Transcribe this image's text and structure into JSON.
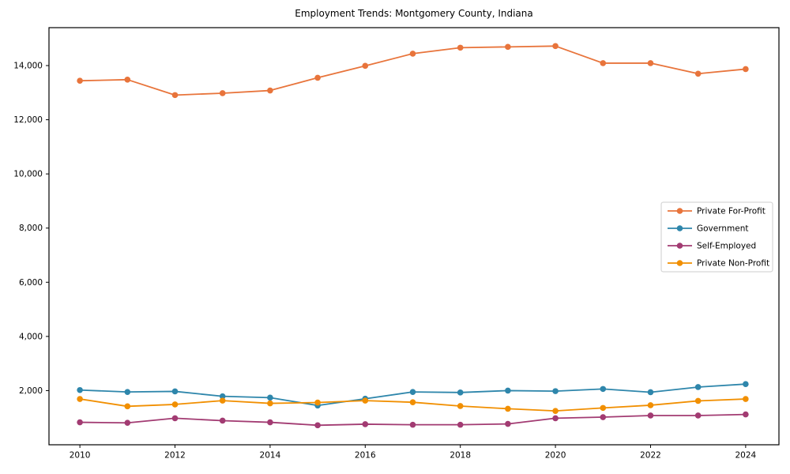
{
  "chart_data": {
    "type": "line",
    "title": "Employment Trends: Montgomery County, Indiana",
    "xlabel": "",
    "ylabel": "",
    "x": [
      2010,
      2011,
      2012,
      2013,
      2014,
      2015,
      2016,
      2017,
      2018,
      2019,
      2020,
      2021,
      2022,
      2023,
      2024
    ],
    "series": [
      {
        "name": "Private For-Profit",
        "color": "#E8743B",
        "marker": "circle",
        "values": [
          13440,
          13480,
          12910,
          12980,
          13080,
          13550,
          13990,
          14440,
          14660,
          14690,
          14720,
          14090,
          14090,
          13700,
          13870
        ]
      },
      {
        "name": "Government",
        "color": "#2E86AB",
        "marker": "circle",
        "values": [
          2020,
          1950,
          1970,
          1790,
          1740,
          1450,
          1700,
          1950,
          1930,
          2000,
          1980,
          2060,
          1940,
          2130,
          2240
        ]
      },
      {
        "name": "Self-Employed",
        "color": "#A23B72",
        "marker": "circle",
        "values": [
          830,
          810,
          980,
          890,
          830,
          720,
          760,
          740,
          740,
          770,
          980,
          1020,
          1080,
          1080,
          1120
        ]
      },
      {
        "name": "Private Non-Profit",
        "color": "#F18F01",
        "marker": "circle",
        "values": [
          1690,
          1420,
          1490,
          1630,
          1530,
          1560,
          1630,
          1570,
          1430,
          1330,
          1250,
          1360,
          1460,
          1620,
          1690
        ]
      }
    ],
    "xticks": {
      "values": [
        2010,
        2012,
        2014,
        2016,
        2018,
        2020,
        2022,
        2024
      ],
      "labels": [
        "2010",
        "2012",
        "2014",
        "2016",
        "2018",
        "2020",
        "2022",
        "2024"
      ]
    },
    "yticks": {
      "values": [
        2000,
        4000,
        6000,
        8000,
        10000,
        12000,
        14000
      ],
      "labels": [
        "2,000",
        "4,000",
        "6,000",
        "8,000",
        "10,000",
        "12,000",
        "14,000"
      ]
    },
    "xlim": [
      2009.35,
      2024.7
    ],
    "ylim": [
      0,
      15400
    ],
    "grid": false,
    "legend": {
      "position": "center right",
      "entries": [
        "Private For-Profit",
        "Government",
        "Self-Employed",
        "Private Non-Profit"
      ]
    },
    "axis_color": "#000000",
    "background": "#ffffff"
  }
}
